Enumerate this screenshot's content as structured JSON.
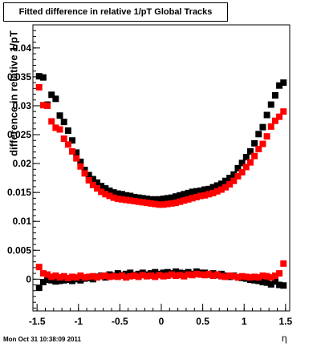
{
  "chart_data": {
    "type": "scatter",
    "title": "Fitted difference in relative 1/pT  Global Tracks",
    "xlabel": "η",
    "ylabel": "difference in relative 1/pT",
    "xlim": [
      -1.55,
      1.55
    ],
    "ylim": [
      -0.0055,
      0.044
    ],
    "x_ticks": [
      -1.5,
      -1,
      -0.5,
      0,
      0.5,
      1,
      1.5
    ],
    "y_ticks": [
      0,
      0.005,
      0.01,
      0.015,
      0.02,
      0.025,
      0.03,
      0.035,
      0.04
    ],
    "series": [
      {
        "color": "#000000",
        "x": [
          -1.475,
          -1.425,
          -1.375,
          -1.325,
          -1.275,
          -1.225,
          -1.175,
          -1.125,
          -1.075,
          -1.025,
          -0.975,
          -0.925,
          -0.875,
          -0.825,
          -0.775,
          -0.725,
          -0.675,
          -0.625,
          -0.575,
          -0.525,
          -0.475,
          -0.425,
          -0.375,
          -0.325,
          -0.275,
          -0.225,
          -0.175,
          -0.125,
          -0.075,
          -0.025,
          0.025,
          0.075,
          0.125,
          0.175,
          0.225,
          0.275,
          0.325,
          0.375,
          0.425,
          0.475,
          0.525,
          0.575,
          0.625,
          0.675,
          0.725,
          0.775,
          0.825,
          0.875,
          0.925,
          0.975,
          1.025,
          1.075,
          1.125,
          1.175,
          1.225,
          1.275,
          1.325,
          1.375,
          1.425,
          1.475
        ],
        "y": [
          0.0351,
          0.0349,
          0.0302,
          0.0319,
          0.0312,
          0.0283,
          0.0272,
          0.0257,
          0.024,
          0.0219,
          0.0203,
          0.0189,
          0.018,
          0.0173,
          0.0167,
          0.0161,
          0.0157,
          0.0153,
          0.015,
          0.0148,
          0.0147,
          0.0145,
          0.0144,
          0.0142,
          0.0141,
          0.014,
          0.0139,
          0.0138,
          0.0138,
          0.0138,
          0.0139,
          0.014,
          0.0141,
          0.0143,
          0.0145,
          0.0147,
          0.0149,
          0.0151,
          0.0152,
          0.0153,
          0.0155,
          0.0156,
          0.0159,
          0.0162,
          0.0165,
          0.017,
          0.0175,
          0.0181,
          0.0192,
          0.0201,
          0.0211,
          0.0221,
          0.0235,
          0.0251,
          0.0263,
          0.0284,
          0.0302,
          0.0318,
          0.0335,
          0.034
        ]
      },
      {
        "color": "#ff0000",
        "x": [
          -1.475,
          -1.425,
          -1.375,
          -1.325,
          -1.275,
          -1.225,
          -1.175,
          -1.125,
          -1.075,
          -1.025,
          -0.975,
          -0.925,
          -0.875,
          -0.825,
          -0.775,
          -0.725,
          -0.675,
          -0.625,
          -0.575,
          -0.525,
          -0.475,
          -0.425,
          -0.375,
          -0.325,
          -0.275,
          -0.225,
          -0.175,
          -0.125,
          -0.075,
          -0.025,
          0.025,
          0.075,
          0.125,
          0.175,
          0.225,
          0.275,
          0.325,
          0.375,
          0.425,
          0.475,
          0.525,
          0.575,
          0.625,
          0.675,
          0.725,
          0.775,
          0.825,
          0.875,
          0.925,
          0.975,
          1.025,
          1.075,
          1.125,
          1.175,
          1.225,
          1.275,
          1.325,
          1.375,
          1.425,
          1.475
        ],
        "y": [
          0.0332,
          0.0301,
          0.03,
          0.0273,
          0.0262,
          0.0259,
          0.0243,
          0.0233,
          0.0221,
          0.0209,
          0.0195,
          0.0183,
          0.0171,
          0.0163,
          0.0157,
          0.0151,
          0.0147,
          0.0144,
          0.0141,
          0.0139,
          0.0138,
          0.0137,
          0.0136,
          0.0135,
          0.0134,
          0.0133,
          0.0132,
          0.0131,
          0.013,
          0.0129,
          0.0129,
          0.013,
          0.0131,
          0.0132,
          0.0134,
          0.0136,
          0.0138,
          0.014,
          0.0142,
          0.0144,
          0.0145,
          0.0147,
          0.0149,
          0.0152,
          0.0155,
          0.0159,
          0.0164,
          0.017,
          0.0178,
          0.0185,
          0.0194,
          0.0202,
          0.0213,
          0.0225,
          0.0234,
          0.0247,
          0.0264,
          0.0274,
          0.0281,
          0.029
        ]
      },
      {
        "color": "#000000",
        "x": [
          -1.475,
          -1.425,
          -1.375,
          -1.325,
          -1.275,
          -1.225,
          -1.175,
          -1.125,
          -1.075,
          -1.025,
          -0.975,
          -0.925,
          -0.875,
          -0.825,
          -0.775,
          -0.725,
          -0.675,
          -0.625,
          -0.575,
          -0.525,
          -0.475,
          -0.425,
          -0.375,
          -0.325,
          -0.275,
          -0.225,
          -0.175,
          -0.125,
          -0.075,
          -0.025,
          0.025,
          0.075,
          0.125,
          0.175,
          0.225,
          0.275,
          0.325,
          0.375,
          0.425,
          0.475,
          0.525,
          0.575,
          0.625,
          0.675,
          0.725,
          0.775,
          0.825,
          0.875,
          0.925,
          0.975,
          1.025,
          1.075,
          1.125,
          1.175,
          1.225,
          1.275,
          1.325,
          1.375,
          1.425,
          1.475
        ],
        "y": [
          -0.0015,
          -0.0005,
          -0.0001,
          -0.0002,
          -0.0004,
          -0.0003,
          -0.0002,
          -0.0001,
          -0.0003,
          0.0,
          -0.0002,
          0.0001,
          0.0002,
          0.0,
          0.0004,
          0.0006,
          0.0003,
          0.0008,
          0.0006,
          0.001,
          0.0007,
          0.0009,
          0.0011,
          0.0007,
          0.0009,
          0.0011,
          0.0008,
          0.001,
          0.0012,
          0.0009,
          0.0011,
          0.0012,
          0.001,
          0.0013,
          0.0011,
          0.001,
          0.0012,
          0.0009,
          0.0013,
          0.0011,
          0.0011,
          0.0008,
          0.001,
          0.0007,
          0.0009,
          0.0006,
          0.0004,
          0.0006,
          0.0003,
          0.0002,
          0.0001,
          -0.0001,
          -0.0002,
          -0.0003,
          -0.0005,
          -0.0006,
          -0.0009,
          -0.0004,
          -0.001,
          -0.0011
        ]
      },
      {
        "color": "#ff0000",
        "x": [
          -1.475,
          -1.425,
          -1.375,
          -1.325,
          -1.275,
          -1.225,
          -1.175,
          -1.125,
          -1.075,
          -1.025,
          -0.975,
          -0.925,
          -0.875,
          -0.825,
          -0.775,
          -0.725,
          -0.675,
          -0.625,
          -0.575,
          -0.525,
          -0.475,
          -0.425,
          -0.375,
          -0.325,
          -0.275,
          -0.225,
          -0.175,
          -0.125,
          -0.075,
          -0.025,
          0.025,
          0.075,
          0.125,
          0.175,
          0.225,
          0.275,
          0.325,
          0.375,
          0.425,
          0.475,
          0.525,
          0.575,
          0.625,
          0.675,
          0.725,
          0.775,
          0.825,
          0.875,
          0.925,
          0.975,
          1.025,
          1.075,
          1.125,
          1.175,
          1.225,
          1.275,
          1.325,
          1.375,
          1.425,
          1.475
        ],
        "y": [
          0.0021,
          0.001,
          0.0008,
          0.0004,
          0.0006,
          0.0003,
          0.0005,
          0.0002,
          0.0004,
          0.0003,
          0.0006,
          0.0003,
          0.0004,
          0.0005,
          0.0003,
          0.0005,
          0.0006,
          0.0004,
          0.0005,
          0.0004,
          0.0006,
          0.0003,
          0.0005,
          0.0006,
          0.0004,
          0.0007,
          0.0005,
          0.0006,
          0.0004,
          0.0007,
          0.0005,
          0.0006,
          0.0008,
          0.0006,
          0.0007,
          0.0005,
          0.0008,
          0.0007,
          0.0009,
          0.0008,
          0.0007,
          0.0009,
          0.0006,
          0.0008,
          0.0005,
          0.0004,
          0.0006,
          0.0005,
          0.0003,
          0.0005,
          0.0004,
          0.0003,
          0.0004,
          0.0003,
          0.0006,
          0.0005,
          0.0003,
          0.0006,
          0.001,
          0.0027
        ]
      }
    ]
  },
  "footer": {
    "timestamp": "Mon Oct 31 10:38:09 2011"
  }
}
